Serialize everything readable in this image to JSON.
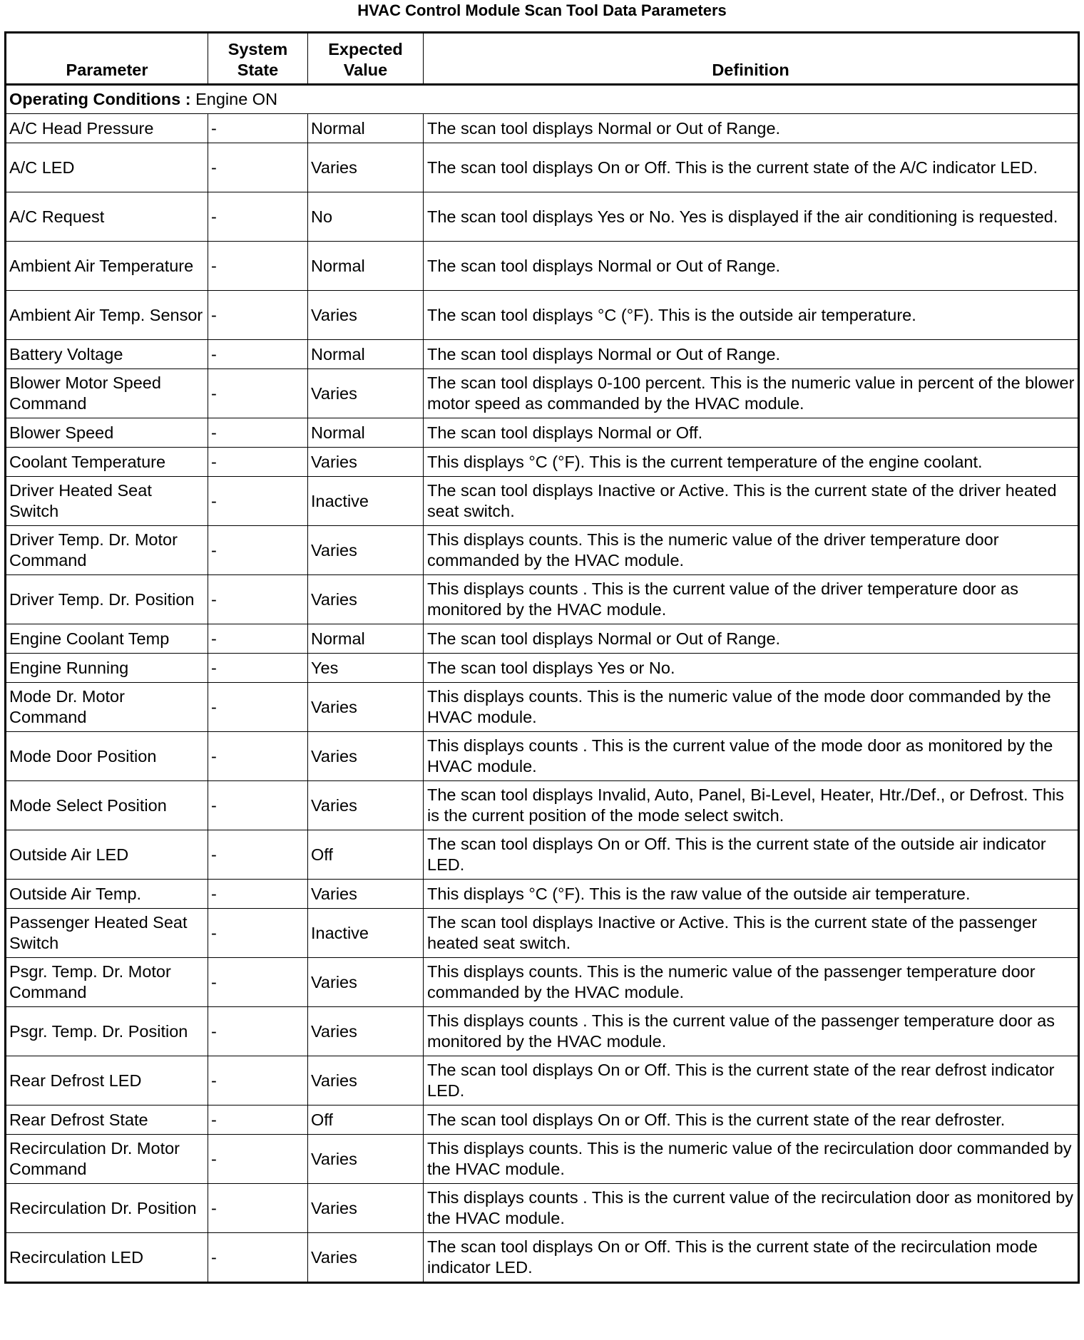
{
  "title": "HVAC Control Module Scan Tool Data Parameters",
  "headers": {
    "parameter": "Parameter",
    "system_state": "System State",
    "expected_value": "Expected Value",
    "definition": "Definition"
  },
  "section": {
    "label": "Operating Conditions",
    "separator": " : ",
    "value": "Engine ON"
  },
  "rows": [
    {
      "parameter": "A/C Head Pressure",
      "state": "-",
      "expected": "Normal",
      "definition": "The scan tool displays Normal or Out of Range.",
      "lines": 1
    },
    {
      "parameter": "A/C LED",
      "state": "-",
      "expected": "Varies",
      "definition": "The scan tool displays On or Off. This is the current state of the A/C indicator LED.",
      "lines": 2
    },
    {
      "parameter": "A/C Request",
      "state": "-",
      "expected": "No",
      "definition": "The scan tool displays Yes or No. Yes is displayed if the air conditioning is requested.",
      "lines": 2
    },
    {
      "parameter": "Ambient Air Temperature",
      "state": "-",
      "expected": "Normal",
      "definition": "The scan tool displays Normal or Out of Range.",
      "lines": 2
    },
    {
      "parameter": "Ambient Air Temp. Sensor",
      "state": "-",
      "expected": "Varies",
      "definition": "The scan tool displays °C (°F). This is the outside air temperature.",
      "lines": 2
    },
    {
      "parameter": "Battery Voltage",
      "state": "-",
      "expected": "Normal",
      "definition": "The scan tool displays Normal or Out of Range.",
      "lines": 1
    },
    {
      "parameter": "Blower Motor Speed Command",
      "state": "-",
      "expected": "Varies",
      "definition": "The scan tool displays 0-100 percent. This is the numeric value in percent of the blower motor speed as commanded by the HVAC module.",
      "lines": 2
    },
    {
      "parameter": "Blower Speed",
      "state": "-",
      "expected": "Normal",
      "definition": "The scan tool displays Normal or Off.",
      "lines": 1
    },
    {
      "parameter": "Coolant Temperature",
      "state": "-",
      "expected": "Varies",
      "definition": "This displays °C (°F). This is the current temperature of the engine coolant.",
      "lines": 1
    },
    {
      "parameter": "Driver Heated Seat Switch",
      "state": "-",
      "expected": "Inactive",
      "definition": "The scan tool displays Inactive or Active. This is the current state of the driver heated seat switch.",
      "lines": 2
    },
    {
      "parameter": "Driver Temp. Dr. Motor Command",
      "state": "-",
      "expected": "Varies",
      "definition": "This displays counts. This is the numeric value of the driver temperature door commanded by the HVAC module.",
      "lines": 2
    },
    {
      "parameter": "Driver Temp. Dr. Position",
      "state": "-",
      "expected": "Varies",
      "definition": "This displays counts . This is the current value of the driver temperature door as monitored by the HVAC module.",
      "lines": 2
    },
    {
      "parameter": "Engine Coolant Temp",
      "state": "-",
      "expected": "Normal",
      "definition": "The scan tool displays Normal or Out of Range.",
      "lines": 1
    },
    {
      "parameter": "Engine Running",
      "state": "-",
      "expected": "Yes",
      "definition": "The scan tool displays Yes or No.",
      "lines": 1
    },
    {
      "parameter": "Mode Dr. Motor Command",
      "state": "-",
      "expected": "Varies",
      "definition": "This displays counts. This is the numeric value of the mode door commanded by the HVAC module.",
      "lines": 2
    },
    {
      "parameter": "Mode Door Position",
      "state": "-",
      "expected": "Varies",
      "definition": "This displays counts . This is the current value of the mode door as monitored by the HVAC module.",
      "lines": 2
    },
    {
      "parameter": "Mode Select Position",
      "state": "-",
      "expected": "Varies",
      "definition": "The scan tool displays Invalid, Auto, Panel, Bi-Level, Heater, Htr./Def., or Defrost. This is the current position of the mode select switch.",
      "lines": 2
    },
    {
      "parameter": "Outside Air LED",
      "state": "-",
      "expected": "Off",
      "definition": "The scan tool displays On or Off. This is the current state of the outside air indicator LED.",
      "lines": 2
    },
    {
      "parameter": "Outside Air Temp.",
      "state": "-",
      "expected": "Varies",
      "definition": "This displays °C (°F). This is the raw value of the outside air temperature.",
      "lines": 1
    },
    {
      "parameter": "Passenger Heated Seat Switch",
      "state": "-",
      "expected": "Inactive",
      "definition": "The scan tool displays Inactive or Active. This is the current state of the passenger heated seat switch.",
      "lines": 2
    },
    {
      "parameter": "Psgr. Temp. Dr. Motor Command",
      "state": "-",
      "expected": "Varies",
      "definition": "This displays counts. This is the numeric value of the passenger temperature door commanded by the HVAC module.",
      "lines": 2
    },
    {
      "parameter": "Psgr. Temp. Dr. Position",
      "state": "-",
      "expected": "Varies",
      "definition": "This displays counts . This is the current value of the passenger temperature door as monitored by the HVAC module.",
      "lines": 2
    },
    {
      "parameter": "Rear Defrost LED",
      "state": "-",
      "expected": "Varies",
      "definition": "The scan tool displays On or Off. This is the current state of the rear defrost indicator LED.",
      "lines": 2
    },
    {
      "parameter": "Rear Defrost State",
      "state": "-",
      "expected": "Off",
      "definition": "The scan tool displays On or Off. This is the current state of the rear defroster.",
      "lines": 1
    },
    {
      "parameter": "Recirculation Dr. Motor Command",
      "state": "-",
      "expected": "Varies",
      "definition": "This displays counts. This is the numeric value of the recirculation door commanded by the HVAC module.",
      "lines": 2
    },
    {
      "parameter": "Recirculation Dr. Position",
      "state": "-",
      "expected": "Varies",
      "definition": "This displays counts . This is the current value of the recirculation door as monitored by the HVAC module.",
      "lines": 2
    },
    {
      "parameter": "Recirculation LED",
      "state": "-",
      "expected": "Varies",
      "definition": "The scan tool displays On or Off. This is the current state of the recirculation mode indicator LED.",
      "lines": 2
    }
  ]
}
